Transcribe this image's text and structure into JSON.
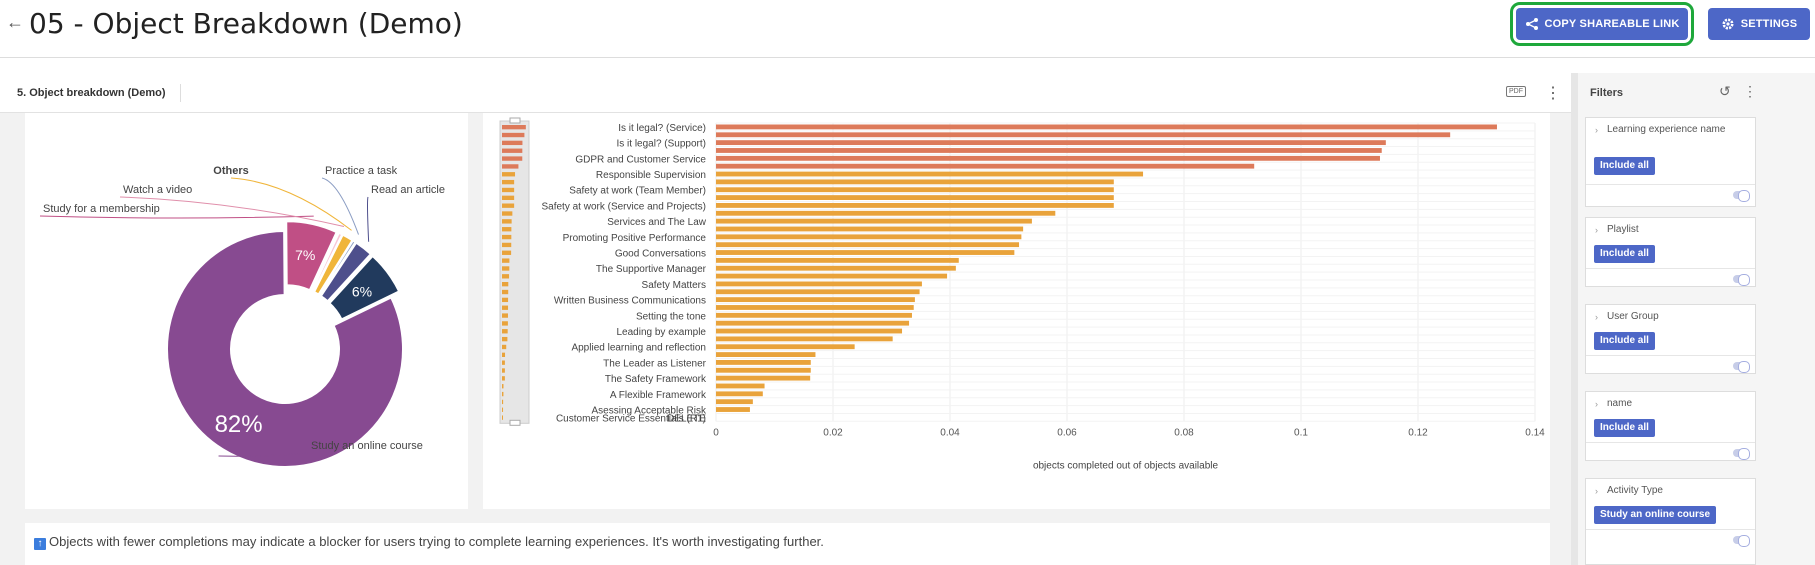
{
  "header": {
    "back_icon": "arrow-left-icon",
    "title": "05 - Object Breakdown (Demo)",
    "share_label": "COPY SHAREABLE LINK",
    "share_icon": "share-icon",
    "settings_label": "SETTINGS",
    "settings_icon": "gear-icon",
    "accent_color": "#4d67c7"
  },
  "panel": {
    "title": "5. Object breakdown (Demo)",
    "pdf_icon_label": "PDF"
  },
  "note": {
    "text": "Objects with fewer completions may indicate a blocker for users trying to complete learning experiences. It's worth investigating further."
  },
  "filters": {
    "title": "Filters",
    "items": [
      {
        "label": "Learning experience name",
        "button": "Include all"
      },
      {
        "label": "Playlist",
        "button": "Include all"
      },
      {
        "label": "User Group",
        "button": "Include all"
      },
      {
        "label": "name",
        "button": "Include all"
      },
      {
        "label": "Activity Type",
        "button": "Study an online course"
      }
    ]
  },
  "chart_data": [
    {
      "type": "pie",
      "subtype": "donut",
      "slices": [
        {
          "label": "Study an online course",
          "value": 82,
          "display": "82%",
          "color": "#874a91"
        },
        {
          "label": "Study for a membership",
          "value": 7,
          "display": "7%",
          "color": "#c04f85"
        },
        {
          "label": "Watch a video",
          "value": 0.5,
          "display": "",
          "color": "#f7c6d4"
        },
        {
          "label": "Others",
          "value": 1.5,
          "display": "",
          "color": "#f0b53a"
        },
        {
          "label": "Practice a task",
          "value": 0.4,
          "display": "",
          "color": "#8b9dc3"
        },
        {
          "label": "Read an article",
          "value": 2.5,
          "display": "",
          "color": "#4e4f8c"
        },
        {
          "label": "",
          "value": 6,
          "display": "6%",
          "color": "#213a5d"
        }
      ]
    },
    {
      "type": "bar",
      "orientation": "horizontal",
      "xlabel": "objects completed out of objects available",
      "xlim": [
        0,
        0.14
      ],
      "xticks": [
        "0",
        "0.02",
        "0.04",
        "0.06",
        "0.08",
        "0.1",
        "0.12",
        "0.14"
      ],
      "labeled_categories": [
        "Is it legal? (Service)",
        "Is it legal? (Support)",
        "GDPR and Customer Service",
        "Responsible Supervision",
        "Safety at work (Team Member)",
        "Safety at work (Service and Projects)",
        "Services and The Law",
        "Promoting Positive Performance",
        "Good Conversations",
        "The Supportive Manager",
        "Safety Matters",
        "Written Business Communications",
        "Setting the tone",
        "Leading by example",
        "Applied learning and reflection",
        "The Leader as Listener",
        "The Safety Framework",
        "A Flexible Framework",
        "Asessing Acceptable Risk",
        "Customer Service Essentials (R1)",
        "DELETE"
      ],
      "values": [
        0.1335,
        0.1255,
        0.1145,
        0.1138,
        0.1135,
        0.092,
        0.073,
        0.068,
        0.068,
        0.068,
        0.068,
        0.058,
        0.054,
        0.0525,
        0.0522,
        0.0518,
        0.051,
        0.0415,
        0.041,
        0.0395,
        0.0352,
        0.0348,
        0.034,
        0.0338,
        0.0335,
        0.033,
        0.0318,
        0.0302,
        0.0237,
        0.017,
        0.0162,
        0.0162,
        0.0161,
        0.0083,
        0.008,
        0.0063,
        0.0058,
        0.0
      ],
      "colors": {
        "high": "#dd7a5a",
        "low": "#e9a33b"
      }
    }
  ]
}
